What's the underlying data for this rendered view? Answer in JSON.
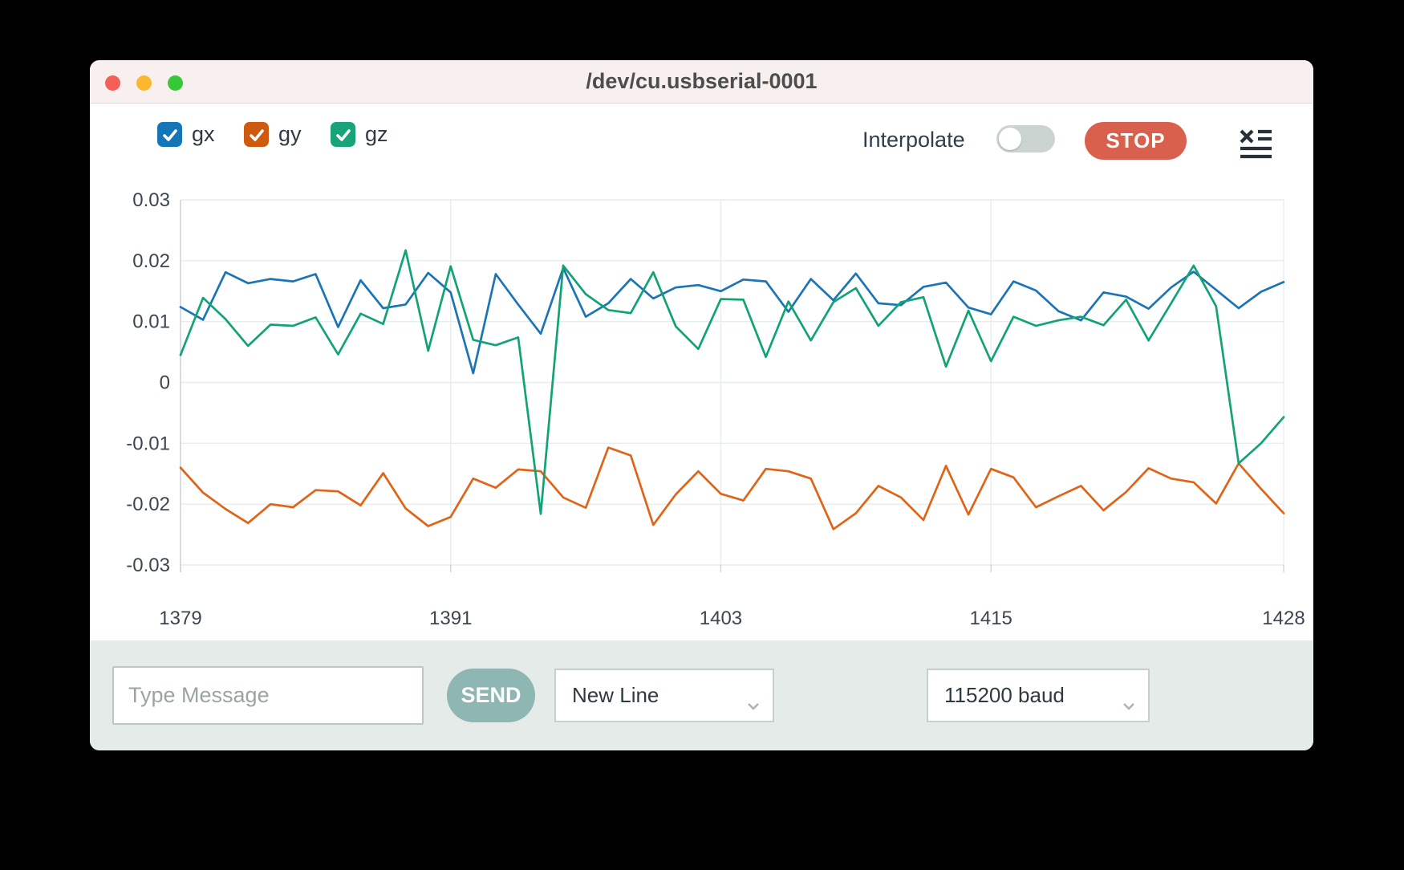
{
  "window": {
    "title": "/dev/cu.usbserial-0001"
  },
  "titlebar_buttons": {
    "close_color": "#f45f58",
    "minimize_color": "#f9b82f",
    "zoom_color": "#35c839"
  },
  "legend": {
    "items": [
      {
        "label": "gx",
        "checked": true,
        "color": "#1476b6"
      },
      {
        "label": "gy",
        "checked": true,
        "color": "#cd5a0f"
      },
      {
        "label": "gz",
        "checked": true,
        "color": "#18a378"
      }
    ]
  },
  "controls": {
    "interpolate_label": "Interpolate",
    "interpolate_on": false,
    "stop_label": "STOP",
    "stop_color": "#d9604c",
    "clear_log_icon": "x-list-icon"
  },
  "message_bar": {
    "input_placeholder": "Type Message",
    "input_value": "",
    "send_label": "SEND",
    "line_ending_selected": "New Line",
    "baud_selected": "115200 baud"
  },
  "chart_data": {
    "type": "line",
    "title": "",
    "xlabel": "",
    "ylabel": "",
    "ylim": [
      -0.03,
      0.03
    ],
    "y_ticks": [
      0.03,
      0.02,
      0.01,
      0,
      -0.01,
      -0.02,
      -0.03
    ],
    "x_ticks": [
      1379,
      1391,
      1403,
      1415,
      1428
    ],
    "grid": true,
    "legend_position": "top-left",
    "colors": {
      "grid": "#e7ecef",
      "axis": "#cfd6da",
      "tick_text": "#3c4650"
    },
    "x": [
      1379,
      1380,
      1381,
      1382,
      1383,
      1384,
      1385,
      1386,
      1387,
      1388,
      1389,
      1390,
      1391,
      1392,
      1393,
      1394,
      1395,
      1396,
      1397,
      1398,
      1399,
      1400,
      1401,
      1402,
      1403,
      1404,
      1405,
      1406,
      1407,
      1408,
      1409,
      1410,
      1411,
      1412,
      1413,
      1414,
      1415,
      1416,
      1417,
      1418,
      1419,
      1420,
      1421,
      1422,
      1423,
      1424,
      1425,
      1426,
      1427,
      1428
    ],
    "series": [
      {
        "name": "gx",
        "color": "#1b74b4",
        "values": [
          0.0124,
          0.0103,
          0.0181,
          0.0163,
          0.017,
          0.0166,
          0.0178,
          0.0091,
          0.0168,
          0.0122,
          0.0128,
          0.018,
          0.0148,
          0.0015,
          0.0178,
          0.0128,
          0.008,
          0.0188,
          0.0108,
          0.013,
          0.017,
          0.0138,
          0.0156,
          0.016,
          0.015,
          0.0169,
          0.0166,
          0.0116,
          0.017,
          0.0135,
          0.0179,
          0.013,
          0.0127,
          0.0157,
          0.0164,
          0.0123,
          0.0112,
          0.0166,
          0.0151,
          0.0117,
          0.0102,
          0.0148,
          0.0141,
          0.0121,
          0.0156,
          0.0182,
          0.0152,
          0.0122,
          0.0149,
          0.0165
        ]
      },
      {
        "name": "gy",
        "color": "#df6417",
        "values": [
          -0.014,
          -0.0181,
          -0.0208,
          -0.0231,
          -0.02,
          -0.0205,
          -0.0177,
          -0.0179,
          -0.0202,
          -0.0149,
          -0.0207,
          -0.0236,
          -0.0221,
          -0.0158,
          -0.0173,
          -0.0143,
          -0.0146,
          -0.0189,
          -0.0206,
          -0.0107,
          -0.012,
          -0.0234,
          -0.0184,
          -0.0146,
          -0.0183,
          -0.0194,
          -0.0142,
          -0.0146,
          -0.0158,
          -0.0241,
          -0.0215,
          -0.017,
          -0.0189,
          -0.0226,
          -0.0137,
          -0.0217,
          -0.0142,
          -0.0156,
          -0.0205,
          -0.0187,
          -0.017,
          -0.021,
          -0.018,
          -0.0141,
          -0.0158,
          -0.0164,
          -0.0199,
          -0.0133,
          -0.0175,
          -0.0215
        ]
      },
      {
        "name": "gz",
        "color": "#12a276",
        "values": [
          0.0045,
          0.0139,
          0.0104,
          0.006,
          0.0095,
          0.0093,
          0.0107,
          0.0046,
          0.0113,
          0.0096,
          0.0217,
          0.0052,
          0.0191,
          0.007,
          0.0061,
          0.0074,
          -0.0216,
          0.0192,
          0.0145,
          0.0119,
          0.0114,
          0.0181,
          0.0092,
          0.0055,
          0.0137,
          0.0136,
          0.0042,
          0.0133,
          0.0069,
          0.0132,
          0.0155,
          0.0093,
          0.0132,
          0.014,
          0.0026,
          0.0118,
          0.0035,
          0.0108,
          0.0093,
          0.0102,
          0.0108,
          0.0094,
          0.0136,
          0.0069,
          0.013,
          0.0192,
          0.0125,
          -0.0133,
          -0.01,
          -0.0057
        ]
      }
    ]
  }
}
